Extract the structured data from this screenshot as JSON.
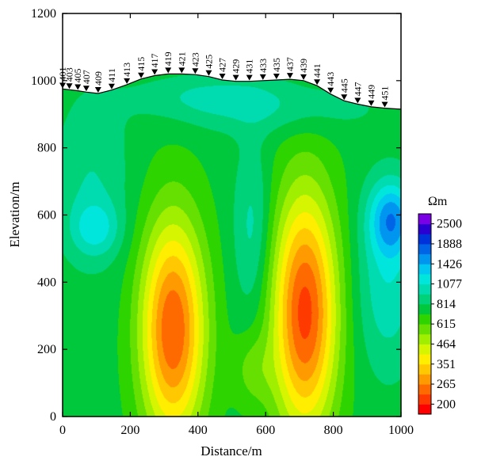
{
  "chart_data": {
    "type": "heatmap",
    "title": "",
    "xlabel": "Distance/m",
    "ylabel": "Elevation/m",
    "xlim": [
      0,
      1000
    ],
    "ylim": [
      0,
      1200
    ],
    "x_ticks": [
      "0",
      "200",
      "400",
      "600",
      "800",
      "1000"
    ],
    "y_ticks": [
      "0",
      "200",
      "400",
      "600",
      "800",
      "1000",
      "1200"
    ],
    "colorbar": {
      "unit": "Ωm",
      "labels": [
        "200",
        "265",
        "351",
        "464",
        "615",
        "814",
        "1077",
        "1426",
        "1888",
        "2500"
      ],
      "colors": [
        "#ff0000",
        "#ff3a00",
        "#ff6a00",
        "#ff9a00",
        "#ffc800",
        "#ffee00",
        "#d6f500",
        "#a0ee00",
        "#66e000",
        "#2ed400",
        "#00c83c",
        "#00d27a",
        "#00dcb0",
        "#00e6dc",
        "#00c8f0",
        "#0096f0",
        "#0064e6",
        "#0032dc",
        "#2a00d2",
        "#7a00e6"
      ]
    },
    "stations": [
      {
        "label": "401",
        "x": 0,
        "elev": 975
      },
      {
        "label": "403",
        "x": 20,
        "elev": 973
      },
      {
        "label": "405",
        "x": 45,
        "elev": 970
      },
      {
        "label": "407",
        "x": 70,
        "elev": 966
      },
      {
        "label": "409",
        "x": 105,
        "elev": 962
      },
      {
        "label": "411",
        "x": 145,
        "elev": 972
      },
      {
        "label": "413",
        "x": 190,
        "elev": 988
      },
      {
        "label": "415",
        "x": 232,
        "elev": 1005
      },
      {
        "label": "417",
        "x": 272,
        "elev": 1015
      },
      {
        "label": "419",
        "x": 312,
        "elev": 1020
      },
      {
        "label": "421",
        "x": 352,
        "elev": 1020
      },
      {
        "label": "423",
        "x": 392,
        "elev": 1018
      },
      {
        "label": "425",
        "x": 432,
        "elev": 1012
      },
      {
        "label": "427",
        "x": 472,
        "elev": 1002
      },
      {
        "label": "429",
        "x": 512,
        "elev": 998
      },
      {
        "label": "431",
        "x": 552,
        "elev": 998
      },
      {
        "label": "433",
        "x": 592,
        "elev": 1000
      },
      {
        "label": "435",
        "x": 632,
        "elev": 1002
      },
      {
        "label": "437",
        "x": 672,
        "elev": 1004
      },
      {
        "label": "439",
        "x": 712,
        "elev": 1000
      },
      {
        "label": "441",
        "x": 752,
        "elev": 985
      },
      {
        "label": "443",
        "x": 792,
        "elev": 960
      },
      {
        "label": "445",
        "x": 832,
        "elev": 940
      },
      {
        "label": "447",
        "x": 872,
        "elev": 930
      },
      {
        "label": "449",
        "x": 912,
        "elev": 922
      },
      {
        "label": "451",
        "x": 952,
        "elev": 918
      },
      {
        "label": "",
        "x": 1000,
        "elev": 915
      }
    ]
  }
}
